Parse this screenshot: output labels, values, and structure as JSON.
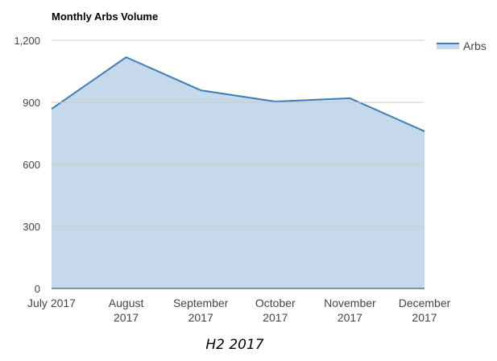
{
  "chart_data": {
    "type": "area",
    "title": "Monthly Arbs Volume",
    "categories": [
      "July 2017",
      "August 2017",
      "September 2017",
      "October 2017",
      "November 2017",
      "December 2017"
    ],
    "series": [
      {
        "name": "Arbs",
        "values": [
          868,
          1118,
          958,
          904,
          920,
          760
        ]
      }
    ],
    "ylim": [
      0,
      1200
    ],
    "yticks": [
      0,
      300,
      600,
      900,
      1200
    ],
    "ytick_labels": [
      "0",
      "300",
      "600",
      "900",
      "1,200"
    ],
    "grid": true,
    "legend_position": "right",
    "colors": {
      "line": "#3f7db8",
      "fill": "#c5d9ea",
      "grid": "#cccccc",
      "baseline": "#333333"
    }
  },
  "caption": "H2 2017"
}
